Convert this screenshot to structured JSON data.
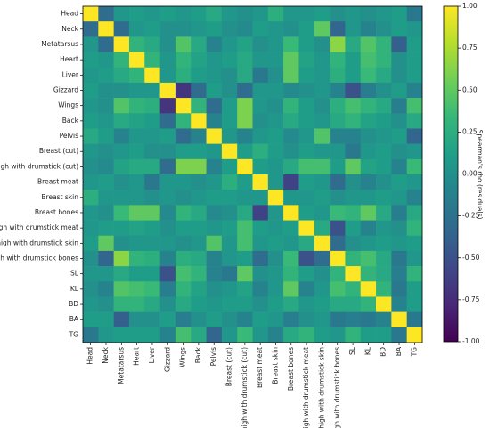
{
  "chart_data": {
    "type": "heatmap",
    "colormap": "viridis",
    "colorbar_label": "Spearman's rho (residuals)",
    "zlim": [
      -1,
      1
    ],
    "zticks": [
      {
        "value": 1,
        "label": "1.00"
      },
      {
        "value": 0.75,
        "label": "0.75"
      },
      {
        "value": 0.5,
        "label": "0.50"
      },
      {
        "value": 0.25,
        "label": "0.25"
      },
      {
        "value": 0,
        "label": "0.00"
      },
      {
        "value": -0.25,
        "label": "-0.25"
      },
      {
        "value": -0.5,
        "label": "-0.50"
      },
      {
        "value": -0.75,
        "label": "-0.75"
      },
      {
        "value": -1,
        "label": "-1.00"
      }
    ],
    "y_categories": [
      "Head",
      "Neck",
      "Metatarsus",
      "Heart",
      "Liver",
      "Gizzard",
      "Wings",
      "Back",
      "Pelvis",
      "Breast (cut)",
      "Thigh with drumstick (cut)",
      "Breast meat",
      "Breast skin",
      "Breast bones",
      "Thigh with drumstick meat",
      "Thigh with drumstick skin",
      "Thigh with drumstick bones",
      "SL",
      "KL",
      "BD",
      "BA",
      "TG"
    ],
    "x_categories": [
      "Head",
      "Neck",
      "Metatarsus",
      "Heart",
      "Liver",
      "Gizzard",
      "Wings",
      "Back",
      "Pelvis",
      "Breast (cut)",
      "Thigh with drumstick (cut)",
      "Breast meat",
      "Breast skin",
      "Breast bones",
      "Thigh with drumstick meat",
      "Thigh with drumstick skin",
      "Thigh with drumstick bones",
      "SL",
      "KL",
      "BD",
      "BA",
      "TG"
    ],
    "values": [
      [
        1,
        -0.3,
        0.05,
        0.1,
        0.05,
        0.1,
        0.05,
        0.1,
        0.2,
        0.05,
        0,
        0.05,
        0.25,
        0.05,
        0.05,
        0.1,
        0,
        0.05,
        0,
        0.05,
        0.1,
        -0.2
      ],
      [
        -0.3,
        1,
        -0.3,
        0.05,
        0.1,
        0,
        0,
        0.05,
        0.1,
        0,
        -0.05,
        0.1,
        0.05,
        0,
        0.1,
        0.5,
        -0.35,
        0.05,
        -0.1,
        0,
        0.1,
        0.05
      ],
      [
        0.05,
        -0.3,
        1,
        0.3,
        0.2,
        0,
        0.45,
        0.2,
        -0.1,
        0.05,
        0.15,
        0,
        0.05,
        0.35,
        0.1,
        0,
        0.65,
        0.2,
        0.45,
        0.3,
        -0.4,
        0.1
      ],
      [
        0.1,
        0.05,
        0.3,
        1,
        0.3,
        0.05,
        0.3,
        0.15,
        0.05,
        0.1,
        0.2,
        0.05,
        0.05,
        0.5,
        0.15,
        0.05,
        0.3,
        0.1,
        0.4,
        0.3,
        0,
        0.1
      ],
      [
        0.05,
        0.1,
        0.2,
        0.3,
        1,
        0.05,
        0.25,
        0.1,
        0.05,
        0,
        0.2,
        -0.2,
        0,
        0.5,
        0.1,
        0.05,
        0.25,
        0.1,
        0.35,
        0.2,
        0,
        0.1
      ],
      [
        0.1,
        0,
        0,
        0.05,
        0.05,
        1,
        -0.7,
        -0.3,
        0.1,
        0,
        -0.3,
        0.05,
        0.05,
        -0.05,
        0,
        0.05,
        -0.1,
        -0.5,
        -0.15,
        0,
        0.1,
        -0.1
      ],
      [
        0.05,
        0,
        0.45,
        0.3,
        0.25,
        -0.7,
        1,
        0.3,
        -0.3,
        0.1,
        0.6,
        0.05,
        0,
        0.3,
        0.1,
        0,
        0.25,
        0.4,
        0.3,
        0.2,
        -0.15,
        0.4
      ],
      [
        0.1,
        0.05,
        0.2,
        0.15,
        0.1,
        -0.3,
        0.3,
        1,
        -0.1,
        0.1,
        0.6,
        0,
        0.05,
        0.2,
        0.1,
        0.05,
        0.2,
        0.3,
        0.15,
        0.1,
        0,
        0.2
      ],
      [
        0.2,
        0.1,
        -0.1,
        0.05,
        0.05,
        0.1,
        -0.3,
        -0.1,
        1,
        0.05,
        -0.1,
        0.05,
        0.1,
        -0.05,
        0.05,
        0.45,
        -0.1,
        -0.1,
        0,
        0.05,
        0.1,
        -0.35
      ],
      [
        0.05,
        0,
        0.05,
        0.1,
        0,
        0,
        0.1,
        0.1,
        0.05,
        1,
        0.1,
        0.25,
        0.1,
        0,
        0.1,
        0.05,
        0.05,
        -0.2,
        0.05,
        0.1,
        0,
        0.05
      ],
      [
        0,
        -0.05,
        0.15,
        0.2,
        0.2,
        -0.3,
        0.6,
        0.6,
        -0.1,
        0.1,
        1,
        0.1,
        0.05,
        0.2,
        0.4,
        0.4,
        0.1,
        0.5,
        0.15,
        0.1,
        -0.1,
        0.35
      ],
      [
        0.05,
        0.1,
        0,
        0.05,
        -0.2,
        0.05,
        0.05,
        0,
        0.05,
        0.25,
        0.1,
        1,
        0.05,
        -0.6,
        0.1,
        0.05,
        -0.3,
        0,
        -0.1,
        0,
        0.1,
        0.05
      ],
      [
        0.25,
        0.05,
        0.05,
        0.05,
        0,
        0.05,
        0,
        0.05,
        0.1,
        0.1,
        0.05,
        0.05,
        1,
        0.05,
        0.05,
        0.1,
        0,
        0.05,
        0.05,
        0.1,
        0.05,
        -0.1
      ],
      [
        0.05,
        0,
        0.35,
        0.5,
        0.5,
        -0.05,
        0.3,
        0.2,
        -0.05,
        0,
        0.2,
        -0.6,
        0.05,
        1,
        0.1,
        0.05,
        0.35,
        0.3,
        0.5,
        0.2,
        -0.15,
        0.2
      ],
      [
        0.05,
        0.1,
        0.1,
        0.15,
        0.1,
        0,
        0.1,
        0.1,
        0.05,
        0.1,
        0.4,
        0.1,
        0.05,
        0.1,
        1,
        0.2,
        -0.5,
        0.1,
        -0.1,
        0.05,
        0,
        0.3
      ],
      [
        0.1,
        0.5,
        0,
        0.05,
        0.05,
        0.05,
        0,
        0.05,
        0.45,
        0.05,
        0.4,
        0.05,
        0.1,
        0.05,
        0.2,
        1,
        -0.3,
        0,
        0.05,
        0.1,
        0.05,
        0.1
      ],
      [
        0,
        -0.35,
        0.65,
        0.3,
        0.25,
        -0.1,
        0.25,
        0.2,
        -0.1,
        0.05,
        0.1,
        -0.3,
        0,
        0.35,
        -0.5,
        -0.3,
        1,
        0.3,
        0.4,
        0.2,
        -0.2,
        0.05
      ],
      [
        0.05,
        0.05,
        0.2,
        0.1,
        0.1,
        -0.5,
        0.4,
        0.3,
        -0.1,
        -0.2,
        0.5,
        0,
        0.05,
        0.3,
        0.1,
        0,
        0.3,
        1,
        0.3,
        0.2,
        -0.15,
        0.3
      ],
      [
        0,
        -0.1,
        0.45,
        0.4,
        0.35,
        -0.15,
        0.3,
        0.15,
        0,
        0.05,
        0.15,
        -0.1,
        0.05,
        0.5,
        -0.1,
        0.05,
        0.4,
        0.3,
        1,
        0.3,
        -0.2,
        0.1
      ],
      [
        0.05,
        0,
        0.3,
        0.3,
        0.2,
        0,
        0.2,
        0.1,
        0.05,
        0.1,
        0.1,
        0,
        0.1,
        0.2,
        0.05,
        0.1,
        0.2,
        0.2,
        0.3,
        1,
        -0.1,
        0.1
      ],
      [
        0.1,
        0.1,
        -0.4,
        0,
        0,
        0.1,
        -0.15,
        0,
        0.1,
        0,
        -0.1,
        0.1,
        0.05,
        -0.15,
        0,
        0.05,
        -0.2,
        -0.15,
        -0.2,
        -0.1,
        1,
        -0.2
      ],
      [
        -0.2,
        0.05,
        0.1,
        0.1,
        0.1,
        -0.1,
        0.4,
        0.2,
        -0.35,
        0.05,
        0.35,
        0.05,
        -0.1,
        0.2,
        0.3,
        0.1,
        0.05,
        0.3,
        0.1,
        0.1,
        -0.2,
        1
      ]
    ]
  }
}
